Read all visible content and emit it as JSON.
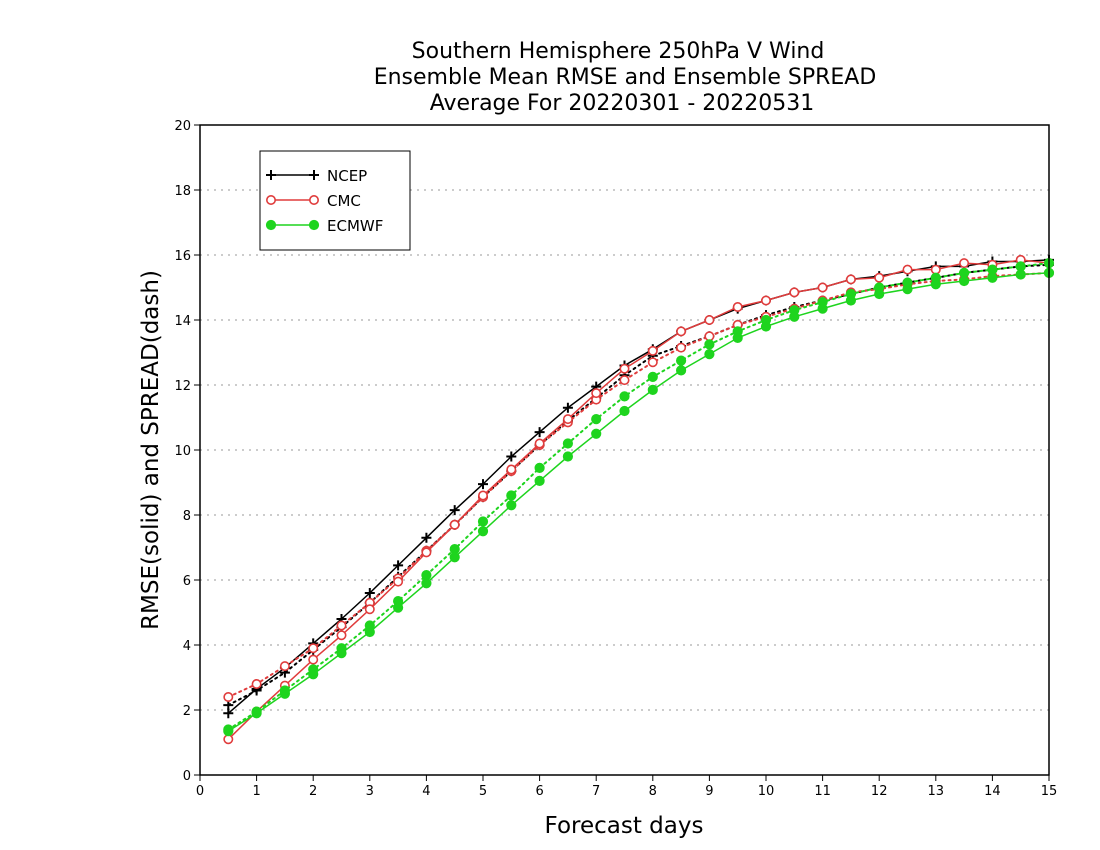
{
  "chart_data": {
    "type": "line",
    "title_lines": [
      "Southern Hemisphere 250hPa V Wind",
      "Ensemble Mean RMSE and Ensemble SPREAD",
      "Average For 20220301 - 20220531"
    ],
    "xlabel": "Forecast days",
    "ylabel": "RMSE(solid) and SPREAD(dash)",
    "xlim": [
      0,
      15
    ],
    "ylim": [
      0,
      20
    ],
    "xticks": [
      "0",
      "1",
      "2",
      "3",
      "4",
      "5",
      "6",
      "7",
      "8",
      "9",
      "10",
      "11",
      "12",
      "13",
      "14",
      "15"
    ],
    "yticks": [
      "0",
      "2",
      "4",
      "6",
      "8",
      "10",
      "12",
      "14",
      "16",
      "18",
      "20"
    ],
    "grid": true,
    "legend_position": "top-left",
    "x": [
      0.5,
      1,
      1.5,
      2,
      2.5,
      3,
      3.5,
      4,
      4.5,
      5,
      5.5,
      6,
      6.5,
      7,
      7.5,
      8,
      8.5,
      9,
      9.5,
      10,
      10.5,
      11,
      11.5,
      12,
      12.5,
      13,
      13.5,
      14,
      14.5,
      15
    ],
    "series": [
      {
        "name": "NCEP",
        "color": "#000000",
        "marker": "plus",
        "rmse": [
          1.9,
          2.65,
          3.3,
          4.05,
          4.8,
          5.6,
          6.45,
          7.3,
          8.15,
          8.95,
          9.8,
          10.55,
          11.3,
          11.95,
          12.6,
          13.1,
          13.65,
          14.0,
          14.35,
          14.6,
          14.85,
          15.0,
          15.25,
          15.35,
          15.5,
          15.65,
          15.65,
          15.8,
          15.8,
          15.85
        ],
        "spread": [
          2.15,
          2.6,
          3.15,
          3.85,
          4.55,
          5.3,
          6.1,
          6.9,
          7.7,
          8.55,
          9.35,
          10.15,
          10.9,
          11.6,
          12.3,
          12.9,
          13.2,
          13.5,
          13.85,
          14.15,
          14.4,
          14.6,
          14.8,
          15.0,
          15.15,
          15.3,
          15.45,
          15.55,
          15.65,
          15.7
        ]
      },
      {
        "name": "CMC",
        "color": "#e03c3c",
        "marker": "circle",
        "rmse": [
          1.1,
          1.95,
          2.75,
          3.55,
          4.3,
          5.1,
          5.95,
          6.85,
          7.7,
          8.6,
          9.4,
          10.2,
          10.95,
          11.75,
          12.5,
          13.05,
          13.65,
          14.0,
          14.4,
          14.6,
          14.85,
          15.0,
          15.25,
          15.3,
          15.55,
          15.55,
          15.75,
          15.7,
          15.85,
          15.75
        ],
        "spread": [
          2.4,
          2.8,
          3.35,
          3.9,
          4.6,
          5.3,
          6.05,
          6.9,
          7.7,
          8.55,
          9.35,
          10.15,
          10.85,
          11.55,
          12.15,
          12.7,
          13.15,
          13.5,
          13.85,
          14.1,
          14.35,
          14.6,
          14.85,
          14.95,
          15.1,
          15.2,
          15.25,
          15.35,
          15.4,
          15.45
        ]
      },
      {
        "name": "ECMWF",
        "color": "#1ed41e",
        "marker": "dot",
        "rmse": [
          1.35,
          1.9,
          2.5,
          3.1,
          3.75,
          4.4,
          5.15,
          5.9,
          6.7,
          7.5,
          8.3,
          9.05,
          9.8,
          10.5,
          11.2,
          11.85,
          12.45,
          12.95,
          13.45,
          13.8,
          14.1,
          14.35,
          14.6,
          14.8,
          14.95,
          15.1,
          15.2,
          15.3,
          15.4,
          15.45
        ],
        "spread": [
          1.4,
          1.95,
          2.6,
          3.25,
          3.9,
          4.6,
          5.35,
          6.15,
          6.95,
          7.8,
          8.6,
          9.45,
          10.2,
          10.95,
          11.65,
          12.25,
          12.75,
          13.25,
          13.65,
          14.0,
          14.3,
          14.55,
          14.8,
          15.0,
          15.15,
          15.3,
          15.45,
          15.55,
          15.65,
          15.75
        ]
      }
    ]
  }
}
